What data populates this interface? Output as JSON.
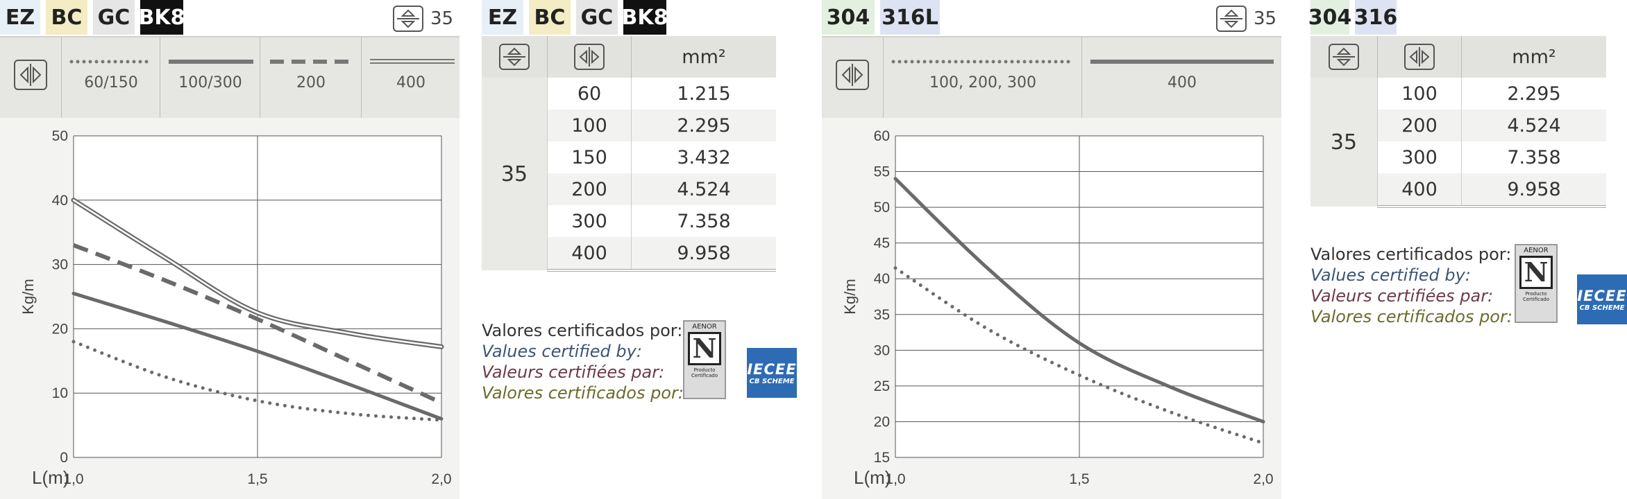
{
  "panel1": {
    "tags": [
      {
        "text": "EZ",
        "bg": "#e8f0f7"
      },
      {
        "text": "BC",
        "bg": "#f3ecc4"
      },
      {
        "text": "GC",
        "bg": "#e6e6e6"
      },
      {
        "text": "BK8",
        "bg": "#111111",
        "color": "#ffffff"
      }
    ],
    "section_value": "35",
    "legend": [
      "60/150",
      "100/300",
      "200",
      "400"
    ]
  },
  "table1": {
    "tags": [
      {
        "text": "EZ",
        "bg": "#e8f0f7"
      },
      {
        "text": "BC",
        "bg": "#f3ecc4"
      },
      {
        "text": "GC",
        "bg": "#e6e6e6"
      },
      {
        "text": "BK8",
        "bg": "#111111",
        "color": "#ffffff"
      }
    ],
    "col3_header": "mm²",
    "height_value": "35",
    "rows": [
      [
        "60",
        "1.215"
      ],
      [
        "100",
        "2.295"
      ],
      [
        "150",
        "3.432"
      ],
      [
        "200",
        "4.524"
      ],
      [
        "300",
        "7.358"
      ],
      [
        "400",
        "9.958"
      ]
    ]
  },
  "panel2": {
    "tags": [
      {
        "text": "304",
        "bg": "#e3efdf"
      },
      {
        "text": "316L",
        "bg": "#dde3f2"
      }
    ],
    "section_value": "35",
    "legend": [
      "100, 200, 300",
      "400"
    ]
  },
  "table2": {
    "tags": [
      {
        "text": "304",
        "bg": "#e3efdf"
      },
      {
        "text": "316",
        "bg": "#dde3f2"
      }
    ],
    "col3_header": "mm²",
    "height_value": "35",
    "rows": [
      [
        "100",
        "2.295"
      ],
      [
        "200",
        "4.524"
      ],
      [
        "300",
        "7.358"
      ],
      [
        "400",
        "9.958"
      ]
    ]
  },
  "cert": {
    "es": "Valores certificados por:",
    "en": "Values certified by:",
    "fr": "Valeurs certifiées par:",
    "pt": "Valores certificados por:",
    "aenor_title": "AENOR",
    "aenor_letter": "N",
    "aenor_sub": "Producto Certificado",
    "iecee_title": "IECEE",
    "iecee_sub": "CB SCHEME"
  },
  "chart_data": [
    {
      "type": "line",
      "title": "",
      "xlabel": "L(m)",
      "ylabel": "Kg/m",
      "xlim": [
        1.0,
        2.0
      ],
      "ylim": [
        0,
        50
      ],
      "xticks": [
        1.0,
        1.5,
        2.0
      ],
      "xtick_labels": [
        "1,0",
        "1,5",
        "2,0"
      ],
      "yticks": [
        0,
        10,
        20,
        30,
        40,
        50
      ],
      "grid": true,
      "color": "#6a6a6a",
      "series": [
        {
          "name": "60/150",
          "style": "dotted",
          "x": [
            1.0,
            1.25,
            1.5,
            1.75,
            2.0
          ],
          "y": [
            18,
            12.5,
            8.8,
            6.8,
            5.8
          ]
        },
        {
          "name": "100/300",
          "style": "solid",
          "x": [
            1.0,
            1.5,
            2.0
          ],
          "y": [
            25.5,
            16.5,
            6.0
          ]
        },
        {
          "name": "200",
          "style": "dashed",
          "x": [
            1.0,
            1.25,
            1.5,
            1.75,
            2.0
          ],
          "y": [
            33,
            27.5,
            21.5,
            15,
            8.5
          ]
        },
        {
          "name": "400",
          "style": "double",
          "x": [
            1.0,
            1.25,
            1.5,
            1.75,
            2.0
          ],
          "y": [
            40,
            31,
            22.5,
            19.3,
            17.2
          ]
        }
      ]
    },
    {
      "type": "line",
      "title": "",
      "xlabel": "L(m)",
      "ylabel": "Kg/m",
      "xlim": [
        1.0,
        2.0
      ],
      "ylim": [
        15,
        60
      ],
      "xticks": [
        1.0,
        1.5,
        2.0
      ],
      "xtick_labels": [
        "1,0",
        "1,5",
        "2,0"
      ],
      "yticks": [
        15,
        20,
        25,
        30,
        35,
        40,
        45,
        50,
        55,
        60
      ],
      "grid": true,
      "color": "#6a6a6a",
      "series": [
        {
          "name": "100, 200, 300",
          "style": "dotted",
          "x": [
            1.0,
            1.25,
            1.5,
            1.75,
            2.0
          ],
          "y": [
            41.5,
            33,
            26.5,
            21.3,
            17
          ]
        },
        {
          "name": "400",
          "style": "solid",
          "x": [
            1.0,
            1.25,
            1.5,
            1.75,
            2.0
          ],
          "y": [
            54,
            41.5,
            31,
            24.8,
            20
          ]
        }
      ]
    }
  ]
}
